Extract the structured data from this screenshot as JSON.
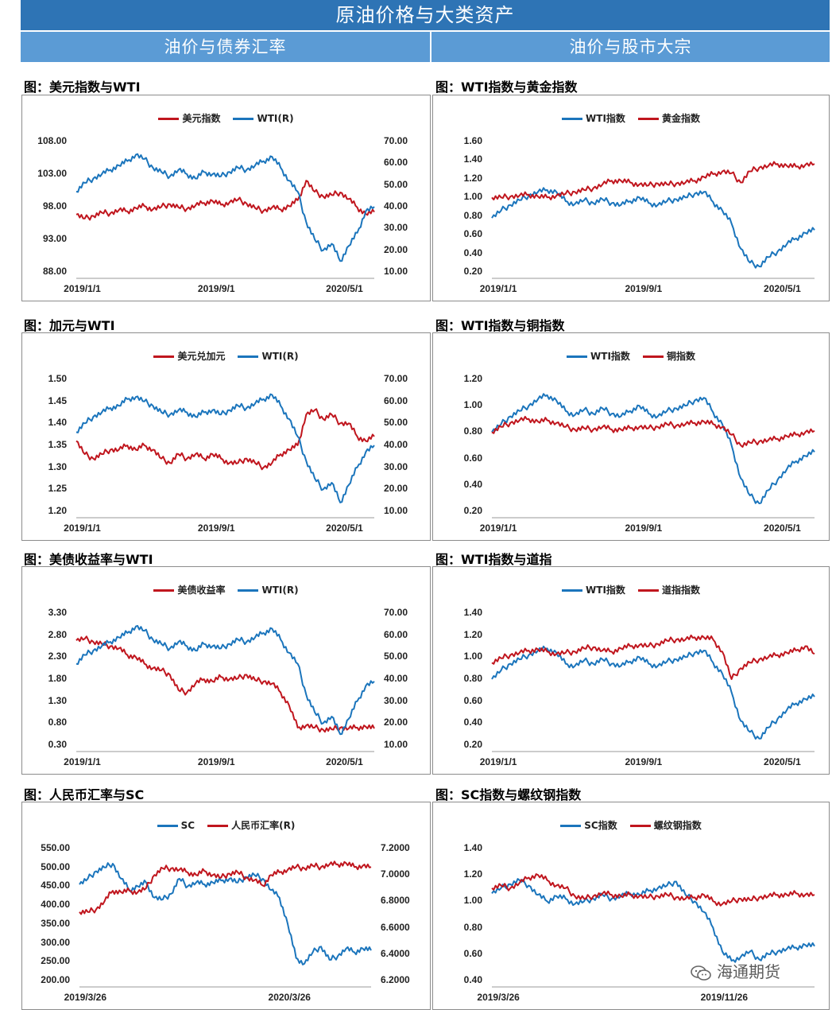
{
  "header": {
    "title": "原油价格与大类资产",
    "left_section": "油价与债券汇率",
    "right_section": "油价与股市大宗"
  },
  "watermark": {
    "text": "海通期货",
    "icon": "wechat-icon"
  },
  "colors": {
    "red": "#c0161e",
    "blue": "#1b75bc"
  },
  "chart_data": [
    {
      "type": "line",
      "title": "图：美元指数与WTI",
      "legend": "top",
      "x_labels": [
        "2019/1/1",
        "2019/9/1",
        "2020/5/1"
      ],
      "y_left": {
        "ticks": [
          "108.00",
          "103.00",
          "98.00",
          "93.00",
          "88.00"
        ],
        "min": 88,
        "max": 108
      },
      "y_right": {
        "ticks": [
          "70.00",
          "60.00",
          "50.00",
          "40.00",
          "30.00",
          "20.00",
          "10.00"
        ],
        "min": 10,
        "max": 70
      },
      "series": [
        {
          "name": "美元指数",
          "color": "#c0161e",
          "axis": "left",
          "values": [
            96.8,
            96.2,
            96.6,
            97.1,
            97.0,
            97.5,
            97.3,
            97.8,
            98.1,
            97.6,
            98.0,
            98.4,
            97.9,
            97.7,
            98.2,
            98.6,
            98.9,
            98.3,
            98.7,
            99.1,
            98.5,
            97.8,
            97.4,
            97.9,
            97.6,
            98.1,
            99.0,
            102.0,
            100.3,
            99.6,
            99.8,
            100.2,
            99.2,
            97.9,
            96.9,
            97.2
          ]
        },
        {
          "name": "WTI(R)",
          "color": "#1b75bc",
          "axis": "right",
          "values": [
            47,
            51,
            53,
            55,
            57,
            59,
            61,
            64,
            62,
            58,
            56,
            54,
            57,
            55,
            53,
            56,
            55,
            54,
            56,
            58,
            57,
            59,
            61,
            63,
            58,
            52,
            47,
            33,
            25,
            20,
            23,
            15,
            22,
            28,
            38,
            40
          ]
        }
      ]
    },
    {
      "type": "line",
      "title": "图：WTI指数与黄金指数",
      "legend": "top",
      "x_labels": [
        "2019/1/1",
        "2019/9/1",
        "2020/5/1"
      ],
      "y_left": {
        "ticks": [
          "1.60",
          "1.40",
          "1.20",
          "1.00",
          "0.80",
          "0.60",
          "0.40",
          "0.20"
        ],
        "min": 0.2,
        "max": 1.6
      },
      "series": [
        {
          "name": "WTI指数",
          "color": "#1b75bc",
          "axis": "left",
          "values": [
            0.78,
            0.86,
            0.92,
            0.97,
            1.02,
            1.06,
            1.08,
            1.06,
            0.96,
            0.93,
            0.97,
            0.94,
            0.98,
            0.94,
            0.92,
            0.96,
            1.0,
            0.94,
            0.92,
            0.96,
            0.98,
            1.0,
            1.04,
            1.06,
            0.95,
            0.86,
            0.72,
            0.45,
            0.3,
            0.26,
            0.36,
            0.42,
            0.5,
            0.56,
            0.62,
            0.65
          ]
        },
        {
          "name": "黄金指数",
          "color": "#c0161e",
          "axis": "left",
          "values": [
            1.0,
            1.0,
            1.01,
            1.02,
            1.03,
            1.01,
            1.0,
            1.02,
            1.04,
            1.06,
            1.08,
            1.1,
            1.14,
            1.18,
            1.18,
            1.16,
            1.14,
            1.13,
            1.15,
            1.14,
            1.15,
            1.16,
            1.18,
            1.22,
            1.25,
            1.28,
            1.26,
            1.16,
            1.28,
            1.32,
            1.34,
            1.36,
            1.34,
            1.33,
            1.35,
            1.36
          ]
        }
      ]
    },
    {
      "type": "line",
      "title": "图：加元与WTI",
      "legend": "top",
      "x_labels": [
        "2019/1/1",
        "2019/9/1",
        "2020/5/1"
      ],
      "y_left": {
        "ticks": [
          "1.50",
          "1.45",
          "1.40",
          "1.35",
          "1.30",
          "1.25",
          "1.20"
        ],
        "min": 1.2,
        "max": 1.5
      },
      "y_right": {
        "ticks": [
          "70.00",
          "60.00",
          "50.00",
          "40.00",
          "30.00",
          "20.00",
          "10.00"
        ],
        "min": 10,
        "max": 70
      },
      "series": [
        {
          "name": "美元兑加元",
          "color": "#c0161e",
          "axis": "left",
          "values": [
            1.36,
            1.33,
            1.32,
            1.33,
            1.34,
            1.34,
            1.35,
            1.34,
            1.35,
            1.34,
            1.32,
            1.31,
            1.33,
            1.32,
            1.33,
            1.32,
            1.33,
            1.32,
            1.31,
            1.31,
            1.32,
            1.31,
            1.3,
            1.31,
            1.33,
            1.34,
            1.35,
            1.42,
            1.43,
            1.41,
            1.42,
            1.4,
            1.4,
            1.37,
            1.36,
            1.37
          ]
        },
        {
          "name": "WTI(R)",
          "color": "#1b75bc",
          "axis": "right",
          "values": [
            46,
            50,
            53,
            55,
            57,
            58,
            61,
            62,
            60,
            58,
            55,
            54,
            56,
            55,
            53,
            55,
            56,
            54,
            56,
            58,
            57,
            59,
            61,
            63,
            58,
            52,
            44,
            33,
            25,
            20,
            23,
            14,
            22,
            30,
            37,
            40
          ]
        }
      ]
    },
    {
      "type": "line",
      "title": "图：WTI指数与铜指数",
      "legend": "top",
      "x_labels": [
        "2019/1/1",
        "2019/9/1",
        "2020/5/1"
      ],
      "y_left": {
        "ticks": [
          "1.20",
          "1.00",
          "0.80",
          "0.60",
          "0.40",
          "0.20"
        ],
        "min": 0.2,
        "max": 1.2
      },
      "series": [
        {
          "name": "WTI指数",
          "color": "#1b75bc",
          "axis": "left",
          "values": [
            0.8,
            0.86,
            0.92,
            0.96,
            1.0,
            1.05,
            1.08,
            1.04,
            0.96,
            0.93,
            0.97,
            0.94,
            0.98,
            0.94,
            0.92,
            0.96,
            1.0,
            0.94,
            0.92,
            0.96,
            0.98,
            1.0,
            1.04,
            1.06,
            0.95,
            0.86,
            0.7,
            0.45,
            0.32,
            0.26,
            0.36,
            0.44,
            0.52,
            0.58,
            0.62,
            0.65
          ]
        },
        {
          "name": "铜指数",
          "color": "#c0161e",
          "axis": "left",
          "values": [
            0.8,
            0.84,
            0.87,
            0.89,
            0.9,
            0.88,
            0.89,
            0.87,
            0.84,
            0.82,
            0.83,
            0.82,
            0.84,
            0.82,
            0.82,
            0.83,
            0.84,
            0.83,
            0.84,
            0.86,
            0.85,
            0.86,
            0.87,
            0.88,
            0.86,
            0.84,
            0.78,
            0.7,
            0.72,
            0.73,
            0.74,
            0.75,
            0.77,
            0.78,
            0.8,
            0.81
          ]
        }
      ]
    },
    {
      "type": "line",
      "title": "图：美债收益率与WTI",
      "legend": "top",
      "x_labels": [
        "2019/1/1",
        "2019/9/1",
        "2020/5/1"
      ],
      "y_left": {
        "ticks": [
          "3.30",
          "2.80",
          "2.30",
          "1.80",
          "1.30",
          "0.80",
          "0.30"
        ],
        "min": 0.3,
        "max": 3.3
      },
      "y_right": {
        "ticks": [
          "70.00",
          "60.00",
          "50.00",
          "40.00",
          "30.00",
          "20.00",
          "10.00"
        ],
        "min": 10,
        "max": 70
      },
      "series": [
        {
          "name": "美债收益率",
          "color": "#c0161e",
          "axis": "left",
          "values": [
            2.68,
            2.72,
            2.65,
            2.6,
            2.55,
            2.5,
            2.35,
            2.3,
            2.15,
            2.05,
            2.0,
            1.9,
            1.55,
            1.5,
            1.7,
            1.8,
            1.75,
            1.85,
            1.8,
            1.82,
            1.9,
            1.78,
            1.75,
            1.7,
            1.5,
            1.2,
            0.7,
            0.75,
            0.7,
            0.65,
            0.66,
            0.7,
            0.68,
            0.7,
            0.72,
            0.68
          ]
        },
        {
          "name": "WTI(R)",
          "color": "#1b75bc",
          "axis": "right",
          "values": [
            47,
            51,
            53,
            55,
            57,
            59,
            61,
            64,
            62,
            58,
            56,
            54,
            57,
            55,
            53,
            56,
            55,
            54,
            56,
            58,
            57,
            59,
            61,
            63,
            58,
            52,
            47,
            33,
            25,
            20,
            23,
            15,
            22,
            30,
            37,
            39
          ]
        }
      ]
    },
    {
      "type": "line",
      "title": "图：WTI指数与道指",
      "legend": "top",
      "x_labels": [
        "2019/1/1",
        "2019/9/1",
        "2020/5/1"
      ],
      "y_left": {
        "ticks": [
          "1.40",
          "1.20",
          "1.00",
          "0.80",
          "0.60",
          "0.40",
          "0.20"
        ],
        "min": 0.2,
        "max": 1.4
      },
      "series": [
        {
          "name": "WTI指数",
          "color": "#1b75bc",
          "axis": "left",
          "values": [
            0.8,
            0.88,
            0.94,
            0.98,
            1.02,
            1.06,
            1.08,
            1.04,
            0.94,
            0.92,
            0.97,
            0.94,
            0.98,
            0.94,
            0.92,
            0.96,
            1.0,
            0.94,
            0.92,
            0.96,
            0.98,
            1.0,
            1.04,
            1.06,
            0.95,
            0.85,
            0.68,
            0.42,
            0.32,
            0.26,
            0.36,
            0.44,
            0.52,
            0.58,
            0.62,
            0.64
          ]
        },
        {
          "name": "道指指数",
          "color": "#c0161e",
          "axis": "left",
          "values": [
            0.95,
            0.99,
            1.02,
            1.04,
            1.06,
            1.07,
            1.05,
            1.03,
            1.04,
            1.05,
            1.08,
            1.09,
            1.06,
            1.05,
            1.08,
            1.1,
            1.11,
            1.1,
            1.12,
            1.15,
            1.16,
            1.16,
            1.18,
            1.18,
            1.16,
            1.05,
            0.8,
            0.9,
            0.95,
            0.98,
            1.0,
            1.02,
            1.04,
            1.06,
            1.1,
            1.03
          ]
        }
      ]
    },
    {
      "type": "line",
      "title": "图：人民币汇率与SC",
      "legend": "top",
      "x_labels": [
        "2019/3/26",
        "2020/3/26"
      ],
      "y_left": {
        "ticks": [
          "550.00",
          "500.00",
          "450.00",
          "400.00",
          "350.00",
          "300.00",
          "250.00",
          "200.00"
        ],
        "min": 200,
        "max": 550
      },
      "y_right": {
        "ticks": [
          "7.2000",
          "7.0000",
          "6.8000",
          "6.6000",
          "6.4000",
          "6.2000"
        ],
        "min": 6.2,
        "max": 7.2
      },
      "series": [
        {
          "name": "SC",
          "color": "#1b75bc",
          "axis": "left",
          "values": [
            455,
            470,
            490,
            500,
            510,
            470,
            440,
            450,
            460,
            420,
            415,
            430,
            470,
            450,
            460,
            455,
            460,
            465,
            470,
            460,
            475,
            480,
            470,
            440,
            420,
            350,
            260,
            245,
            275,
            290,
            255,
            265,
            285,
            275,
            285,
            280
          ]
        },
        {
          "name": "人民币汇率(R)",
          "color": "#c0161e",
          "axis": "right",
          "values": [
            6.72,
            6.72,
            6.74,
            6.8,
            6.88,
            6.87,
            6.88,
            6.87,
            6.9,
            7.0,
            7.05,
            7.05,
            7.04,
            7.02,
            7.0,
            7.03,
            7.0,
            6.98,
            7.01,
            7.02,
            6.98,
            6.96,
            6.92,
            7.0,
            7.02,
            7.04,
            7.06,
            7.05,
            7.07,
            7.06,
            7.08,
            7.08,
            7.09,
            7.06,
            7.07,
            7.06
          ]
        }
      ]
    },
    {
      "type": "line",
      "title": "图：SC指数与螺纹钢指数",
      "legend": "top",
      "x_labels": [
        "2019/3/26",
        "2019/11/26"
      ],
      "y_left": {
        "ticks": [
          "1.40",
          "1.20",
          "1.00",
          "0.80",
          "0.60",
          "0.40"
        ],
        "min": 0.4,
        "max": 1.4
      },
      "series": [
        {
          "name": "SC指数",
          "color": "#1b75bc",
          "axis": "left",
          "values": [
            1.06,
            1.1,
            1.13,
            1.16,
            1.12,
            1.05,
            1.0,
            1.04,
            1.02,
            0.98,
            1.0,
            1.02,
            1.05,
            1.02,
            1.04,
            1.06,
            1.05,
            1.08,
            1.1,
            1.12,
            1.15,
            1.05,
            1.0,
            0.92,
            0.8,
            0.62,
            0.55,
            0.58,
            0.62,
            0.56,
            0.6,
            0.62,
            0.64,
            0.65,
            0.67,
            0.66
          ]
        },
        {
          "name": "螺纹钢指数",
          "color": "#c0161e",
          "axis": "left",
          "values": [
            1.1,
            1.12,
            1.1,
            1.14,
            1.18,
            1.2,
            1.16,
            1.12,
            1.1,
            1.04,
            1.02,
            1.04,
            1.06,
            1.05,
            1.04,
            1.05,
            1.04,
            1.03,
            1.04,
            1.05,
            1.03,
            1.02,
            1.03,
            1.05,
            1.0,
            0.98,
            1.0,
            1.02,
            1.01,
            1.03,
            1.04,
            1.05,
            1.05,
            1.06,
            1.05,
            1.05
          ]
        }
      ]
    }
  ]
}
